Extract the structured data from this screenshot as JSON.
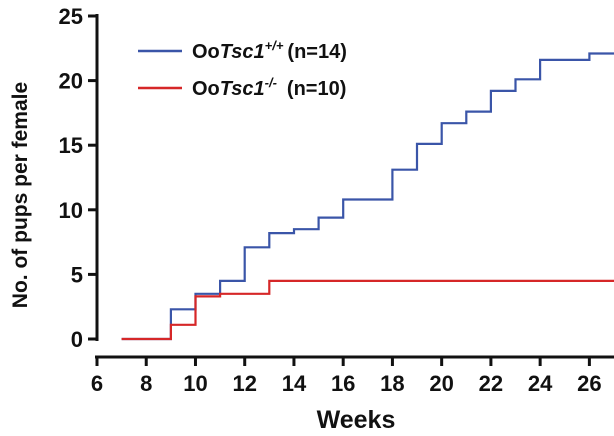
{
  "chart_data": {
    "type": "line",
    "line_style": "step",
    "xlabel": "Weeks",
    "ylabel": "No. of pups per female",
    "xlim": [
      6,
      27
    ],
    "ylim": [
      0,
      25
    ],
    "x_ticks": [
      6,
      8,
      10,
      12,
      14,
      16,
      18,
      20,
      22,
      24,
      26
    ],
    "y_ticks": [
      0,
      5,
      10,
      15,
      20,
      25
    ],
    "legend_position": "top-left",
    "series": [
      {
        "name_prefix": "Oo",
        "name_gene": "Tsc1",
        "name_genotype": "+/+",
        "name_count": "(n=14)",
        "color": "#3a55a8",
        "points": [
          [
            7,
            0
          ],
          [
            9,
            0
          ],
          [
            9,
            2.3
          ],
          [
            10,
            2.3
          ],
          [
            10,
            3.5
          ],
          [
            11,
            3.5
          ],
          [
            11,
            4.5
          ],
          [
            12,
            4.5
          ],
          [
            12,
            7.1
          ],
          [
            13,
            7.1
          ],
          [
            13,
            8.2
          ],
          [
            14,
            8.2
          ],
          [
            14,
            8.5
          ],
          [
            15,
            8.5
          ],
          [
            15,
            9.4
          ],
          [
            16,
            9.4
          ],
          [
            16,
            10.8
          ],
          [
            18,
            10.8
          ],
          [
            18,
            13.1
          ],
          [
            19,
            13.1
          ],
          [
            19,
            15.1
          ],
          [
            20,
            15.1
          ],
          [
            20,
            16.7
          ],
          [
            21,
            16.7
          ],
          [
            21,
            17.6
          ],
          [
            22,
            17.6
          ],
          [
            22,
            19.2
          ],
          [
            23,
            19.2
          ],
          [
            23,
            20.1
          ],
          [
            24,
            20.1
          ],
          [
            24,
            21.6
          ],
          [
            26,
            21.6
          ],
          [
            26,
            22.1
          ],
          [
            27,
            22.1
          ]
        ]
      },
      {
        "name_prefix": "Oo",
        "name_gene": "Tsc1",
        "name_genotype": "-/-",
        "name_count": "(n=10)",
        "color": "#d62728",
        "points": [
          [
            7,
            0
          ],
          [
            9,
            0
          ],
          [
            9,
            1.1
          ],
          [
            10,
            1.1
          ],
          [
            10,
            3.3
          ],
          [
            11,
            3.3
          ],
          [
            11,
            3.5
          ],
          [
            13,
            3.5
          ],
          [
            13,
            4.5
          ],
          [
            27,
            4.5
          ]
        ]
      }
    ]
  }
}
